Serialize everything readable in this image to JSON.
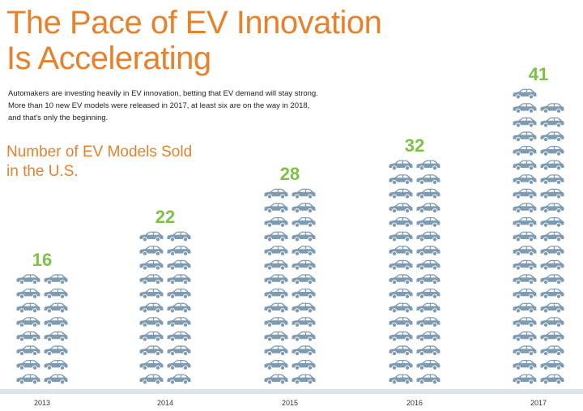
{
  "header": {
    "title_line1": "The Pace of EV Innovation",
    "title_line2": "Is Accelerating",
    "intro": "Automakers are investing heavily in EV innovation, betting that EV demand will stay strong. More than 10 new EV models were released in 2017, at least six are on the way in 2018, and that's only the beginning."
  },
  "colors": {
    "accent": "#e8812b",
    "value": "#7cc243",
    "car": "#7f9bb1",
    "window": "#ffffff"
  },
  "chart_data": {
    "type": "bar",
    "title_line1": "Number of EV Models Sold",
    "title_line2": "in the U.S.",
    "categories": [
      "2013",
      "2014",
      "2015",
      "2016",
      "2017"
    ],
    "values": [
      16,
      22,
      28,
      32,
      41
    ],
    "icon": "car-icon",
    "xlabel": "",
    "ylabel": "",
    "ylim": [
      0,
      42
    ]
  }
}
